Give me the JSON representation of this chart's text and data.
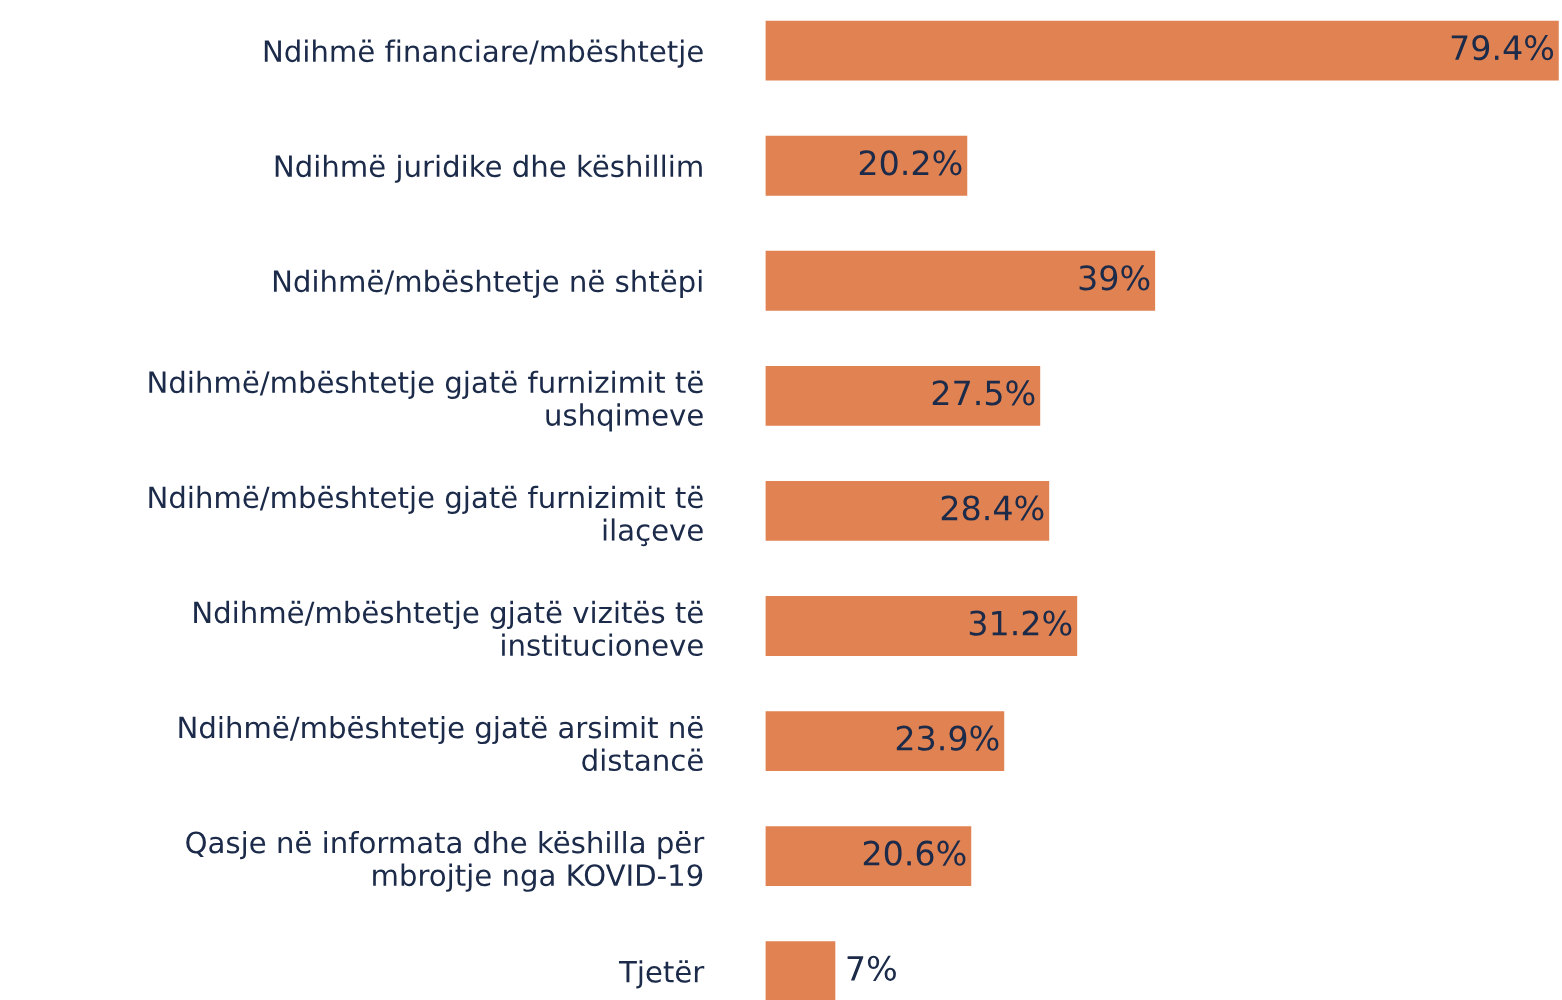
{
  "chart_data": {
    "type": "bar",
    "orientation": "horizontal",
    "categories": [
      "Ndihmë financiare/mbështetje",
      "Ndihmë juridike dhe këshillim",
      "Ndihmë/mbështetje në shtëpi",
      "Ndihmë/mbështetje gjatë furnizimit të\nushqimeve",
      "Ndihmë/mbështetje gjatë furnizimit të\nilaçeve",
      "Ndihmë/mbështetje gjatë vizitës të\ninstitucioneve",
      "Ndihmë/mbështetje gjatë arsimit në\ndistancë",
      "Qasje në informata dhe këshilla për\nmbrojtje nga KOVID-19",
      "Tjetër"
    ],
    "values": [
      79.4,
      20.2,
      39,
      27.5,
      28.4,
      31.2,
      23.9,
      20.6,
      7
    ],
    "value_labels": [
      "79.4%",
      "20.2%",
      "39%",
      "27.5%",
      "28.4%",
      "31.2%",
      "23.9%",
      "20.6%",
      "7%"
    ],
    "color": "#e08251",
    "grid": false,
    "legend": false
  }
}
